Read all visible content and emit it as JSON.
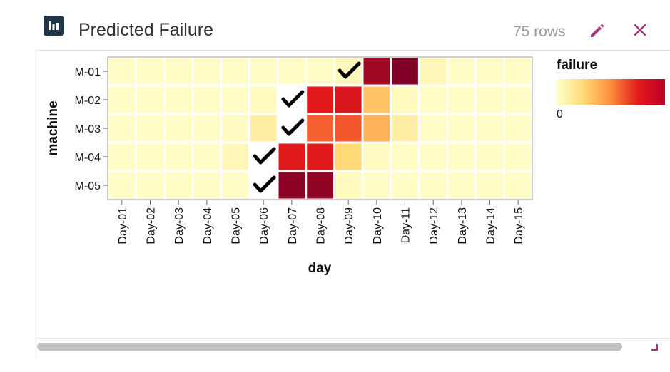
{
  "header": {
    "title": "Predicted Failure",
    "row_count": "75 rows",
    "icon": "bar-chart-icon",
    "edit_icon": "pencil-icon",
    "close_icon": "close-icon",
    "accent_color": "#a3367d"
  },
  "legend": {
    "title": "failure",
    "min_label": "0",
    "colors": [
      "#ffffcc",
      "#fed976",
      "#fd8d3c",
      "#e31a1c",
      "#bd0026"
    ]
  },
  "chart_data": {
    "type": "heatmap",
    "title": "",
    "xlabel": "day",
    "ylabel": "machine",
    "x_categories": [
      "Day-01",
      "Day-02",
      "Day-03",
      "Day-04",
      "Day-05",
      "Day-06",
      "Day-07",
      "Day-08",
      "Day-09",
      "Day-10",
      "Day-11",
      "Day-12",
      "Day-13",
      "Day-14",
      "Day-15"
    ],
    "y_categories": [
      "M-01",
      "M-02",
      "M-03",
      "M-04",
      "M-05"
    ],
    "values": [
      [
        0.02,
        0.02,
        0.02,
        0.02,
        0.02,
        0.02,
        0.02,
        0.02,
        0.05,
        0.92,
        1.0,
        0.06,
        0.02,
        0.02,
        0.02
      ],
      [
        0.02,
        0.02,
        0.02,
        0.02,
        0.02,
        0.04,
        0.0,
        0.75,
        0.78,
        0.32,
        0.04,
        0.02,
        0.02,
        0.02,
        0.02
      ],
      [
        0.02,
        0.02,
        0.02,
        0.02,
        0.03,
        0.12,
        0.0,
        0.6,
        0.62,
        0.38,
        0.12,
        0.02,
        0.02,
        0.02,
        0.02
      ],
      [
        0.02,
        0.02,
        0.02,
        0.02,
        0.06,
        0.0,
        0.76,
        0.76,
        0.25,
        0.03,
        0.02,
        0.02,
        0.02,
        0.02,
        0.02
      ],
      [
        0.02,
        0.02,
        0.02,
        0.02,
        0.02,
        0.0,
        0.97,
        0.96,
        0.04,
        0.02,
        0.02,
        0.02,
        0.02,
        0.02,
        0.02
      ]
    ],
    "markers": [
      {
        "machine": "M-01",
        "day": "Day-09",
        "symbol": "checkmark"
      },
      {
        "machine": "M-02",
        "day": "Day-07",
        "symbol": "checkmark"
      },
      {
        "machine": "M-03",
        "day": "Day-07",
        "symbol": "checkmark"
      },
      {
        "machine": "M-04",
        "day": "Day-06",
        "symbol": "checkmark"
      },
      {
        "machine": "M-05",
        "day": "Day-06",
        "symbol": "checkmark"
      }
    ],
    "legend_position": "right",
    "grid": false
  }
}
